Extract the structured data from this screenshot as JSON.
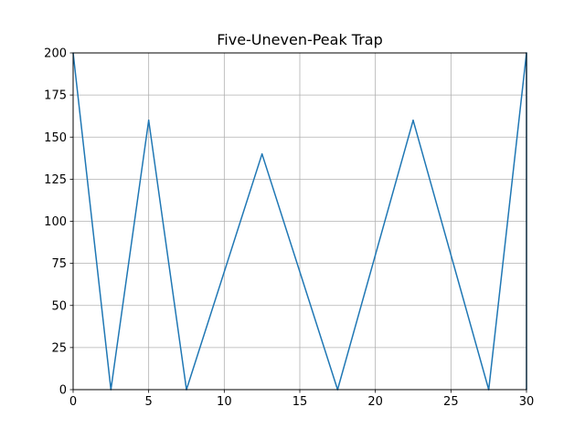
{
  "chart_data": {
    "type": "line",
    "title": "Five-Uneven-Peak Trap",
    "xlabel": "",
    "ylabel": "",
    "xlim": [
      0,
      30
    ],
    "ylim": [
      0,
      200
    ],
    "x_ticks": [
      0,
      5,
      10,
      15,
      20,
      25,
      30
    ],
    "y_ticks": [
      0,
      25,
      50,
      75,
      100,
      125,
      150,
      175,
      200
    ],
    "grid": true,
    "series": [
      {
        "color": "#1f77b4",
        "x": [
          0,
          2.5,
          5,
          7.5,
          12.5,
          17.5,
          22.5,
          27.5,
          30,
          30
        ],
        "y": [
          200,
          0,
          160,
          0,
          140,
          0,
          160,
          0,
          200,
          0
        ]
      }
    ]
  }
}
